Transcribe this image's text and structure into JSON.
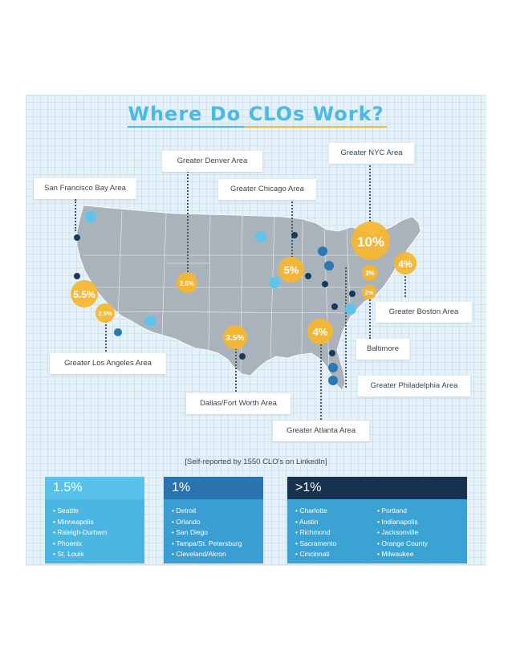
{
  "title": "Where Do CLOs Work?",
  "caption": "[Self-reported by 1550 CLO's on LinkedIn]",
  "colors": {
    "accent_blue": "#49b9e6",
    "accent_yellow": "#f5b731",
    "map_fill": "#aab3bb",
    "dot_dark": "#163b5a",
    "dot_mid": "#2a78b4",
    "dot_light": "#5ec4ea"
  },
  "regions": [
    {
      "key": "sf",
      "label": "San Francisco Bay Area"
    },
    {
      "key": "denver",
      "label": "Greater Denver Area",
      "value": "2.5%"
    },
    {
      "key": "chicago",
      "label": "Greater Chicago Area",
      "value": "5%"
    },
    {
      "key": "nyc",
      "label": "Greater NYC Area",
      "value": "10%"
    },
    {
      "key": "boston",
      "label": "Greater Boston Area",
      "value": "4%"
    },
    {
      "key": "baltimore",
      "label": "Baltimore",
      "value": "2%"
    },
    {
      "key": "philly",
      "label": "Greater Philadelphia Area",
      "value": "3%"
    },
    {
      "key": "la",
      "label": "Greater Los Angeles Area",
      "value": "5.5%"
    },
    {
      "key": "sandiego_region",
      "value": "2.5%"
    },
    {
      "key": "dallas",
      "label": "Dallas/Fort Worth Area",
      "value": "3.5%"
    },
    {
      "key": "atlanta",
      "label": "Greater Atlanta Area",
      "value": "4%"
    }
  ],
  "groups": [
    {
      "heading": "1.5%",
      "cities": [
        "Seattle",
        "Minneapolis",
        "Raleigh-Durham",
        "Phoenix",
        "St. Louis"
      ]
    },
    {
      "heading": "1%",
      "cities": [
        "Detroit",
        "Orlando",
        "San Diego",
        "Tampa/St. Petersburg",
        "Cleveland/Akron"
      ]
    },
    {
      "heading": ">1%",
      "cities_col1": [
        "Charlotte",
        "Austin",
        "Richmond",
        "Sacramento",
        "Cincinnati"
      ],
      "cities_col2": [
        "Portland",
        "Indianapolis",
        "Jacksonville",
        "Orange County",
        "Milwaukee"
      ]
    }
  ]
}
